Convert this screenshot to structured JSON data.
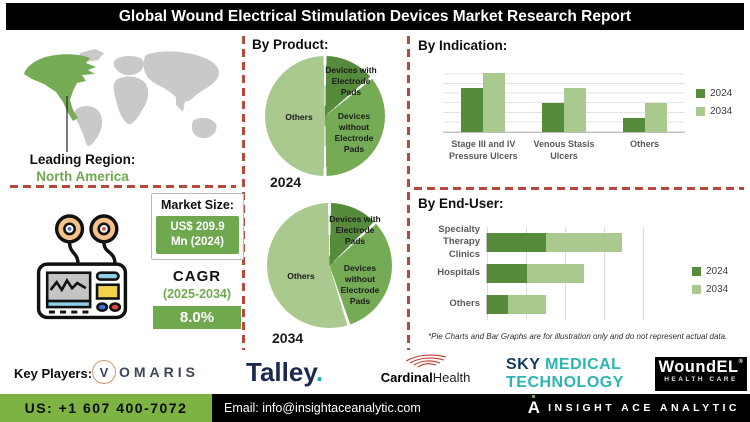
{
  "header": {
    "title": "Global Wound Electrical Stimulation Devices Market Research Report"
  },
  "colors": {
    "accent_green": "#6fa84f",
    "dark_green": "#568b3b",
    "mid_green": "#76ab56",
    "light_green": "#a9c98e",
    "dash_red": "#b8473c",
    "footer_green": "#7cb342",
    "navy": "#1b2b50",
    "teal": "#2cb5b2",
    "map_gray": "#c9c9c9"
  },
  "left_panel": {
    "leading_region": {
      "label": "Leading Region:",
      "value": "North America"
    },
    "market_size": {
      "label": "Market Size:",
      "value_line1": "US$ 209.9",
      "value_line2": "Mn (2024)"
    },
    "cagr": {
      "label": "CAGR",
      "period": "(2025-2034)",
      "value": "8.0%"
    }
  },
  "chart_data": [
    {
      "id": "by_product_2024",
      "type": "pie",
      "title": "By Product:",
      "year": "2024",
      "slices": [
        {
          "label": "Devices with Electrode Pads",
          "value": 14
        },
        {
          "label": "Devices without Electrode Pads",
          "value": 36
        },
        {
          "label": "Others",
          "value": 50
        }
      ],
      "colors": [
        "#568b3b",
        "#76ab56",
        "#a9c98e"
      ],
      "note": "illustrative proportions, no data labels shown"
    },
    {
      "id": "by_product_2034",
      "type": "pie",
      "title": "By Product:",
      "year": "2034",
      "slices": [
        {
          "label": "Devices with Electrode Pads",
          "value": 13
        },
        {
          "label": "Devices without Electrode Pads",
          "value": 32
        },
        {
          "label": "Others",
          "value": 55
        }
      ],
      "colors": [
        "#568b3b",
        "#76ab56",
        "#a9c98e"
      ],
      "note": "illustrative proportions, no data labels shown"
    },
    {
      "id": "by_indication",
      "type": "bar",
      "title": "By Indication:",
      "categories": [
        "Stage III and IV Pressure Ulcers",
        "Venous Stasis Ulcers",
        "Others"
      ],
      "series": [
        {
          "name": "2024",
          "color": "#568b3b",
          "values": [
            65,
            44,
            21
          ]
        },
        {
          "name": "2034",
          "color": "#a9c98e",
          "values": [
            88,
            65,
            44
          ]
        }
      ],
      "ylim": [
        0,
        100
      ],
      "grid": true,
      "legend_position": "right",
      "note": "no axis tick labels shown; values are relative bar heights (%)"
    },
    {
      "id": "by_end_user",
      "type": "bar",
      "orientation": "horizontal",
      "stacked": true,
      "title": "By End-User:",
      "categories": [
        "Specialty Therapy Clinics",
        "Hospitals",
        "Others"
      ],
      "series": [
        {
          "name": "2024",
          "color": "#568b3b",
          "values": [
            37,
            25,
            13
          ]
        },
        {
          "name": "2034",
          "color": "#a9c98e",
          "values": [
            48,
            36,
            24
          ]
        }
      ],
      "xlim": [
        0,
        100
      ],
      "grid": true,
      "legend_position": "right",
      "note": "no axis tick labels shown; values are relative segment widths (%)"
    }
  ],
  "sections": {
    "note": "*Pie Charts and Bar Graphs are for illustration only and do not represent actual data."
  },
  "key_players": {
    "label": "Key Players:",
    "vomaris": {
      "initial": "V",
      "rest": "OMARIS"
    },
    "talley": {
      "name": "Talley",
      "dot": "."
    },
    "cardinal": {
      "bold": "Cardinal",
      "regular": "Health"
    },
    "sky": {
      "word1": "SKY",
      "word2": "MEDICAL",
      "line2": "TECHNOLOGY"
    },
    "woundel": {
      "name": "WoundEL",
      "reg": "®",
      "sub": "HEALTH CARE"
    }
  },
  "footer": {
    "phone": "US: +1 607 400-7072",
    "email": "Email: info@insightaceanalytic.com",
    "brand_initial": "A",
    "brand": "INSIGHT ACE ANALYTIC"
  }
}
